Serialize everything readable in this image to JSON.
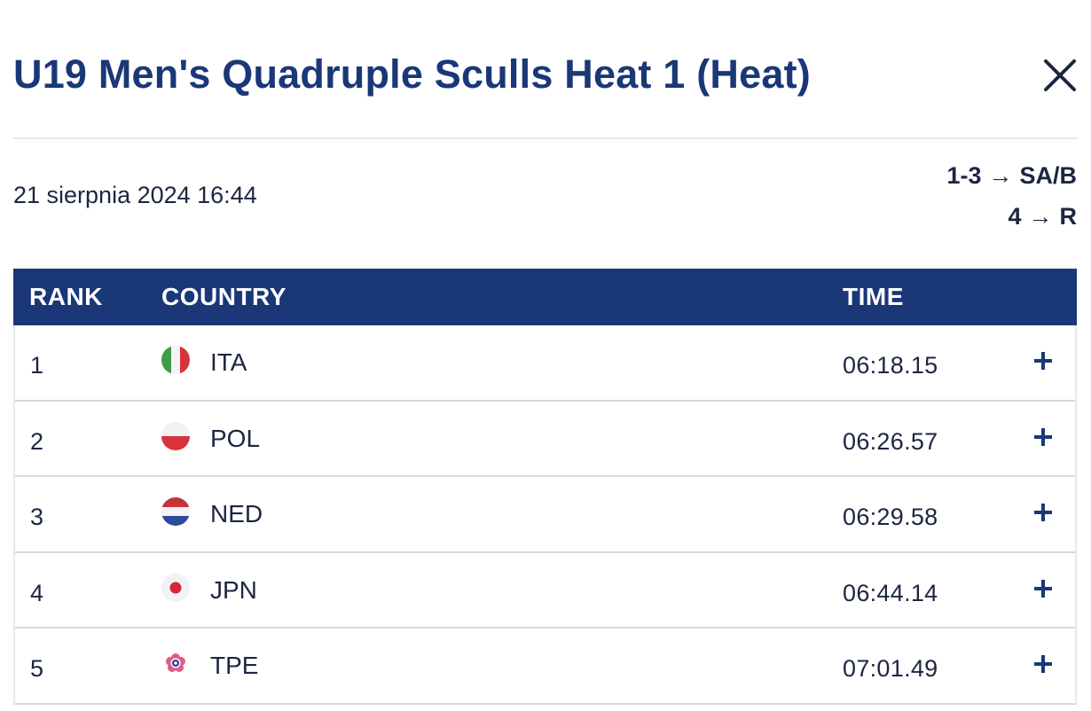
{
  "header": {
    "title": "U19 Men's Quadruple Sculls Heat 1 (Heat)",
    "close_icon": "close-icon"
  },
  "race": {
    "datetime": "21 sierpnia 2024 16:44",
    "progression": [
      {
        "places": "1-3",
        "arrow": "→",
        "target": "SA/B"
      },
      {
        "places": "4",
        "arrow": "→",
        "target": "R"
      }
    ]
  },
  "table": {
    "columns": {
      "rank": "RANK",
      "country": "COUNTRY",
      "time": "TIME"
    },
    "rows": [
      {
        "rank": "1",
        "country": "ITA",
        "time": "06:18.15",
        "flag": "italy-flag-icon"
      },
      {
        "rank": "2",
        "country": "POL",
        "time": "06:26.57",
        "flag": "poland-flag-icon"
      },
      {
        "rank": "3",
        "country": "NED",
        "time": "06:29.58",
        "flag": "netherlands-flag-icon"
      },
      {
        "rank": "4",
        "country": "JPN",
        "time": "06:44.14",
        "flag": "japan-flag-icon"
      },
      {
        "rank": "5",
        "country": "TPE",
        "time": "07:01.49",
        "flag": "chinese-taipei-flag-icon"
      }
    ],
    "expand_icon": "plus-icon"
  },
  "colors": {
    "title": "#1a3778",
    "header_bg": "#1a3778",
    "text": "#1c2541",
    "divider": "#e6e8ec"
  }
}
